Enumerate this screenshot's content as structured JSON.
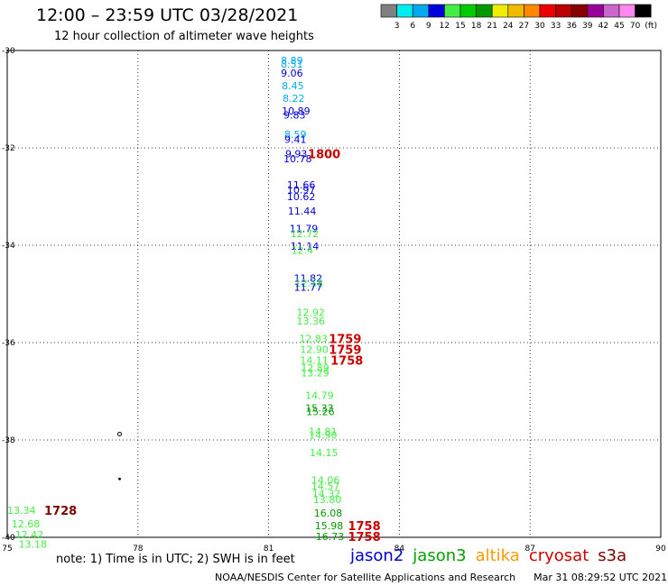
{
  "title": "12:00 – 23:59 UTC 03/28/2021",
  "subtitle": "12 hour collection of altimeter wave heights",
  "note": "note: 1) Time is in UTC; 2) SWH is in feet",
  "satellites": [
    {
      "name": "jason2",
      "color": "#0000cc"
    },
    {
      "name": "jason3",
      "color": "#00a000"
    },
    {
      "name": "altika",
      "color": "#ff9900"
    },
    {
      "name": "cryosat",
      "color": "#cc0000"
    },
    {
      "name": "s3a",
      "color": "#800000"
    }
  ],
  "footer": {
    "org": "NOAA/NESDIS Center for Satellite Applications and Research",
    "timestamp": "Mar 31 08:29:52 UTC 2021"
  },
  "colorbar": {
    "labels": [
      "3",
      "6",
      "9",
      "12",
      "15",
      "18",
      "21",
      "24",
      "27",
      "30",
      "33",
      "36",
      "39",
      "42",
      "45",
      "70",
      "(ft)"
    ],
    "colors": [
      "#808080",
      "#00eeee",
      "#00aaee",
      "#0000dd",
      "#44ee44",
      "#00cc00",
      "#009900",
      "#eeee00",
      "#eebb00",
      "#ff8800",
      "#ee0000",
      "#bb0000",
      "#880000",
      "#990099",
      "#cc66cc",
      "#ff88ee",
      "#000000"
    ]
  },
  "chart_data": {
    "type": "scatter",
    "title": "12:00 – 23:59 UTC 03/28/2021",
    "subtitle": "12 hour collection of altimeter wave heights",
    "xlim": [
      75,
      90
    ],
    "ylim": [
      -40,
      -30
    ],
    "xticks": [
      "75",
      "78",
      "81",
      "84",
      "87",
      "90"
    ],
    "yticks": [
      "-30",
      "-32",
      "-34",
      "-36",
      "-38",
      "-40"
    ],
    "grid": true,
    "swh_labels": [
      {
        "lon": 81.28,
        "lat": -30.2,
        "text": "8.89",
        "color": "#00aaee"
      },
      {
        "lon": 81.28,
        "lat": -30.28,
        "text": "8.51",
        "color": "#00aaee"
      },
      {
        "lon": 81.28,
        "lat": -30.46,
        "text": "9.06",
        "color": "#0000dd"
      },
      {
        "lon": 81.3,
        "lat": -30.72,
        "text": "8.45",
        "color": "#00aaee"
      },
      {
        "lon": 81.32,
        "lat": -30.98,
        "text": "8.22",
        "color": "#00aaee"
      },
      {
        "lon": 81.3,
        "lat": -31.24,
        "text": "10.89",
        "color": "#0000dd"
      },
      {
        "lon": 81.34,
        "lat": -31.32,
        "text": "9.83",
        "color": "#0000dd"
      },
      {
        "lon": 81.36,
        "lat": -31.72,
        "text": "8.59",
        "color": "#00aaee"
      },
      {
        "lon": 81.36,
        "lat": -31.82,
        "text": "9.41",
        "color": "#0000dd"
      },
      {
        "lon": 81.38,
        "lat": -32.12,
        "text": "9.93",
        "color": "#0000dd"
      },
      {
        "lon": 81.34,
        "lat": -32.22,
        "text": "10.78",
        "color": "#0000dd"
      },
      {
        "lon": 81.42,
        "lat": -32.76,
        "text": "11.66",
        "color": "#0000dd"
      },
      {
        "lon": 81.42,
        "lat": -32.86,
        "text": "10.97",
        "color": "#0000dd"
      },
      {
        "lon": 81.42,
        "lat": -33.0,
        "text": "10.62",
        "color": "#0000dd"
      },
      {
        "lon": 81.44,
        "lat": -33.3,
        "text": "11.44",
        "color": "#0000dd"
      },
      {
        "lon": 81.48,
        "lat": -33.66,
        "text": "11.79",
        "color": "#0000dd"
      },
      {
        "lon": 81.5,
        "lat": -33.76,
        "text": "12.72",
        "color": "#44ee44"
      },
      {
        "lon": 81.5,
        "lat": -34.02,
        "text": "11.14",
        "color": "#0000dd"
      },
      {
        "lon": 81.52,
        "lat": -34.1,
        "text": "12.4",
        "color": "#44ee44"
      },
      {
        "lon": 81.58,
        "lat": -34.68,
        "text": "11.82",
        "color": "#0000dd"
      },
      {
        "lon": 81.6,
        "lat": -34.78,
        "text": "12.58",
        "color": "#44ee44"
      },
      {
        "lon": 81.58,
        "lat": -34.86,
        "text": "11.77",
        "color": "#0000dd"
      },
      {
        "lon": 81.64,
        "lat": -35.38,
        "text": "12.92",
        "color": "#44ee44"
      },
      {
        "lon": 81.64,
        "lat": -35.56,
        "text": "13.36",
        "color": "#44ee44"
      },
      {
        "lon": 81.7,
        "lat": -35.92,
        "text": "12.83",
        "color": "#44ee44"
      },
      {
        "lon": 81.72,
        "lat": -36.14,
        "text": "12.90",
        "color": "#44ee44"
      },
      {
        "lon": 81.72,
        "lat": -36.36,
        "text": "14.11",
        "color": "#44ee44"
      },
      {
        "lon": 81.74,
        "lat": -36.52,
        "text": "12.89",
        "color": "#44ee44"
      },
      {
        "lon": 81.74,
        "lat": -36.62,
        "text": "13.29",
        "color": "#44ee44"
      },
      {
        "lon": 81.84,
        "lat": -37.08,
        "text": "14.79",
        "color": "#44ee44"
      },
      {
        "lon": 81.84,
        "lat": -37.34,
        "text": "15.33",
        "color": "#009900"
      },
      {
        "lon": 81.86,
        "lat": -37.42,
        "text": "15.26",
        "color": "#009900"
      },
      {
        "lon": 81.92,
        "lat": -37.82,
        "text": "14.81",
        "color": "#44ee44"
      },
      {
        "lon": 81.92,
        "lat": -37.9,
        "text": "14.90",
        "color": "#44ee44"
      },
      {
        "lon": 81.94,
        "lat": -38.26,
        "text": "14.15",
        "color": "#44ee44"
      },
      {
        "lon": 81.98,
        "lat": -38.82,
        "text": "14.06",
        "color": "#44ee44"
      },
      {
        "lon": 81.98,
        "lat": -38.94,
        "text": "14.57",
        "color": "#44ee44"
      },
      {
        "lon": 82.0,
        "lat": -39.1,
        "text": "14.32",
        "color": "#44ee44"
      },
      {
        "lon": 82.02,
        "lat": -39.22,
        "text": "13.80",
        "color": "#44ee44"
      },
      {
        "lon": 82.04,
        "lat": -39.5,
        "text": "16.08",
        "color": "#009900"
      },
      {
        "lon": 82.06,
        "lat": -39.76,
        "text": "15.98",
        "color": "#009900"
      },
      {
        "lon": 82.08,
        "lat": -39.98,
        "text": "16.73",
        "color": "#009900"
      },
      {
        "lon": 75.0,
        "lat": -39.44,
        "text": "13.34",
        "color": "#44ee44"
      },
      {
        "lon": 75.1,
        "lat": -39.72,
        "text": "12.68",
        "color": "#44ee44"
      },
      {
        "lon": 75.18,
        "lat": -39.94,
        "text": "12.42",
        "color": "#44ee44"
      },
      {
        "lon": 75.26,
        "lat": -40.14,
        "text": "13.18",
        "color": "#44ee44"
      }
    ],
    "time_labels": [
      {
        "lon": 81.9,
        "lat": -32.12,
        "text": "1800",
        "color": "#cc0000"
      },
      {
        "lon": 82.38,
        "lat": -35.92,
        "text": "1759",
        "color": "#cc0000"
      },
      {
        "lon": 82.38,
        "lat": -36.14,
        "text": "1759",
        "color": "#cc0000"
      },
      {
        "lon": 82.42,
        "lat": -36.36,
        "text": "1758",
        "color": "#cc0000"
      },
      {
        "lon": 82.82,
        "lat": -39.76,
        "text": "1758",
        "color": "#cc0000"
      },
      {
        "lon": 82.82,
        "lat": -39.98,
        "text": "1758",
        "color": "#cc0000"
      },
      {
        "lon": 75.85,
        "lat": -39.44,
        "text": "1728",
        "color": "#800000"
      }
    ],
    "markers": [
      {
        "lon": 77.58,
        "lat": -37.88,
        "shape": "ring"
      },
      {
        "lon": 77.58,
        "lat": -38.8,
        "shape": "dot"
      }
    ]
  }
}
